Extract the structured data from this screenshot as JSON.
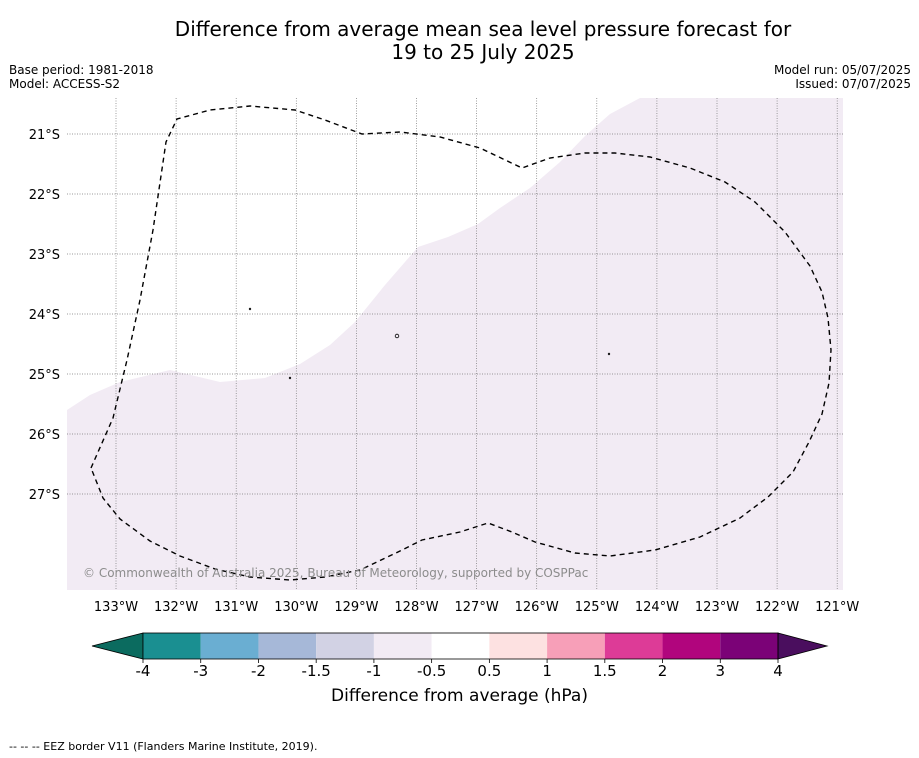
{
  "title_line1": "Difference from average mean sea level pressure forecast for",
  "title_line2": "19 to 25 July 2025",
  "meta": {
    "base_period": "Base period: 1981-2018",
    "model": "Model: ACCESS-S2",
    "model_run": "Model run: 05/07/2025",
    "issued": "Issued: 07/07/2025"
  },
  "copyright": "© Commonwealth of Australia 2025, Bureau of Meteorology, supported by COSPPac",
  "lon_ticks": [
    "133°W",
    "132°W",
    "131°W",
    "130°W",
    "129°W",
    "128°W",
    "127°W",
    "126°W",
    "125°W",
    "124°W",
    "123°W",
    "122°W",
    "121°W"
  ],
  "lat_ticks": [
    "21°S",
    "22°S",
    "23°S",
    "24°S",
    "25°S",
    "26°S",
    "27°S"
  ],
  "colorbar": {
    "label": "Difference from average (hPa)",
    "tick_labels": [
      "-4",
      "-3",
      "-2",
      "-1.5",
      "-1",
      "-0.5",
      "0.5",
      "1",
      "1.5",
      "2",
      "3",
      "4"
    ],
    "colors": [
      "#1a8f91",
      "#6aaed2",
      "#a6b8d8",
      "#d2d2e4",
      "#f2ebf4",
      "#ffffff",
      "#fde1e1",
      "#f79fb8",
      "#dd3b97",
      "#b1057d",
      "#7b0277"
    ],
    "under_color": "#0b6b5f",
    "over_color": "#4a0e5e"
  },
  "map": {
    "shaded_color": "#f2ebf4",
    "shaded_class": "-1 to -0.5"
  },
  "footnote": "--  --  -- EEZ border V11 (Flanders Marine Institute, 2019)."
}
